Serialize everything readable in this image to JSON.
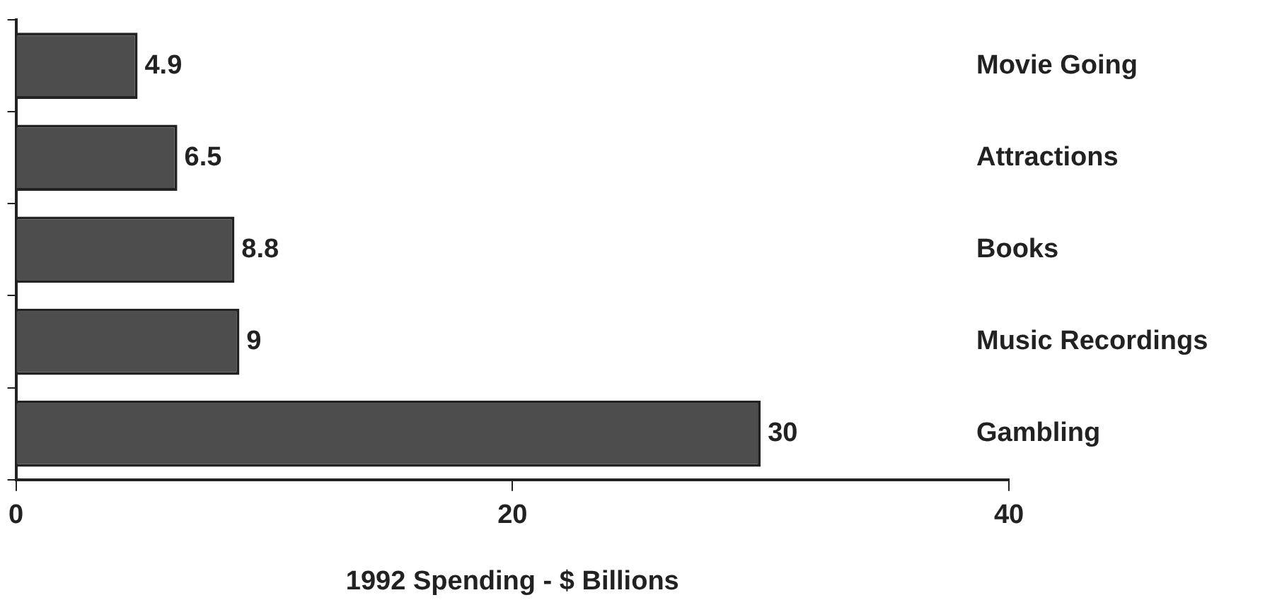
{
  "chart_data": {
    "type": "bar",
    "orientation": "horizontal",
    "xlabel": "1992 Spending - $ Billions",
    "categories": [
      "Movie Going",
      "Attractions",
      "Books",
      "Music Recordings",
      "Gambling"
    ],
    "values": [
      4.9,
      6.5,
      8.8,
      9,
      30
    ],
    "color": "#4d4d4d",
    "xlim": [
      0,
      40
    ],
    "xticks": [
      0,
      20,
      40
    ],
    "grid": false,
    "data_labels": true
  }
}
